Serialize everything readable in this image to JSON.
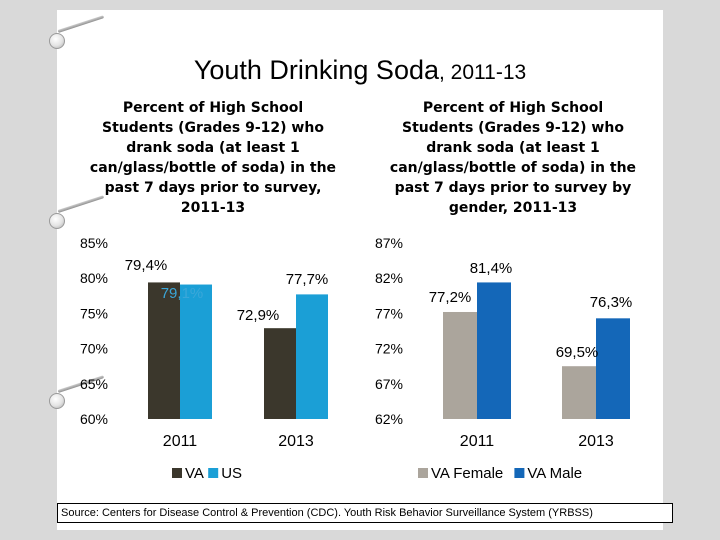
{
  "slide": {
    "title_main": "Youth Drinking Soda",
    "title_years": ", 2011-13",
    "source": "Source: Centers for Disease Control & Prevention (CDC). Youth Risk Behavior Surveillance System (YRBSS)"
  },
  "colors": {
    "va": "#3b372c",
    "us": "#1b9fd6",
    "va_female": "#aba59c",
    "va_male": "#1467b8",
    "background": "#d9d9d9",
    "slide": "#ffffff"
  },
  "chart_data": [
    {
      "type": "bar",
      "title": "Percent of High School Students (Grades 9-12) who drank soda (at least 1 can/glass/bottle of soda) in the past 7 days prior to survey, 2011-13",
      "categories": [
        "2011",
        "2013"
      ],
      "series": [
        {
          "name": "VA",
          "color": "#3b372c",
          "values": [
            79.4,
            72.9
          ]
        },
        {
          "name": "US",
          "color": "#1b9fd6",
          "values": [
            79.1,
            77.7
          ]
        }
      ],
      "data_labels": [
        [
          "79,4%",
          "72,9%"
        ],
        [
          "79,1%",
          "77,7%"
        ]
      ],
      "ylim": [
        60,
        85
      ],
      "yticks": [
        60,
        65,
        70,
        75,
        80,
        85
      ],
      "ytick_labels": [
        "60%",
        "65%",
        "70%",
        "75%",
        "80%",
        "85%"
      ],
      "legend": "bottom"
    },
    {
      "type": "bar",
      "title": "Percent of High School Students (Grades 9-12) who drank soda (at least 1 can/glass/bottle of soda) in the past 7 days prior to survey by gender, 2011-13",
      "categories": [
        "2011",
        "2013"
      ],
      "series": [
        {
          "name": "VA Female",
          "color": "#aba59c",
          "values": [
            77.2,
            69.5
          ]
        },
        {
          "name": "VA Male",
          "color": "#1467b8",
          "values": [
            81.4,
            76.3
          ]
        }
      ],
      "data_labels": [
        [
          "77,2%",
          "69,5%"
        ],
        [
          "81,4%",
          "76,3%"
        ]
      ],
      "ylim": [
        62,
        87
      ],
      "yticks": [
        62,
        67,
        72,
        77,
        82,
        87
      ],
      "ytick_labels": [
        "62%",
        "67%",
        "72%",
        "77%",
        "82%",
        "87%"
      ],
      "legend": "bottom"
    }
  ]
}
